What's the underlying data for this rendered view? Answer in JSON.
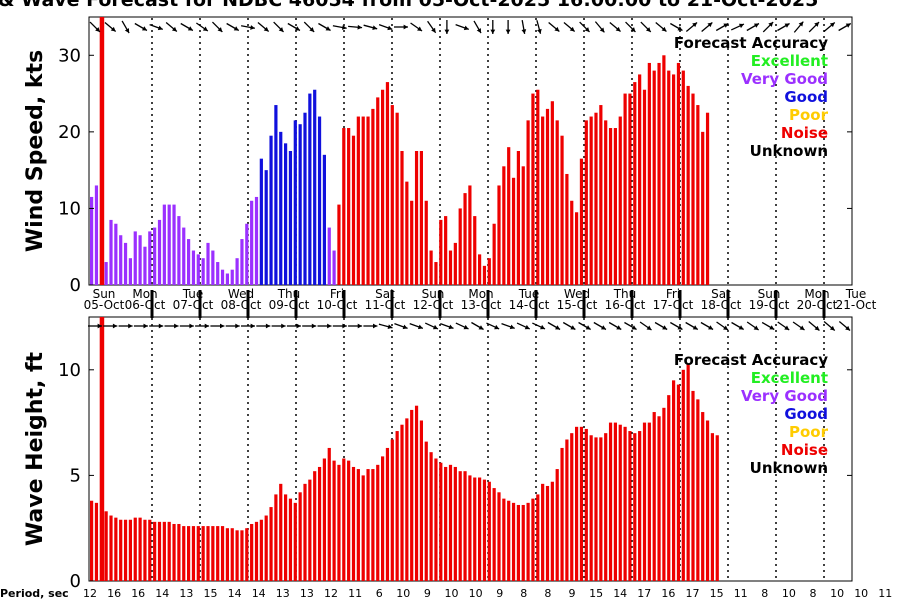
{
  "title": "& Wave Forecast for NDBC 46054 from 05-Oct-2025 16:00:00 to 21-Oct-2025",
  "legend": {
    "title": "Forecast Accuracy",
    "items": [
      {
        "label": "Excellent",
        "color": "#22ee22"
      },
      {
        "label": "Very Good",
        "color": "#9b30ff"
      },
      {
        "label": "Good",
        "color": "#1010dd"
      },
      {
        "label": "Poor",
        "color": "#ffcc00"
      },
      {
        "label": "Noise",
        "color": "#ee0000"
      },
      {
        "label": "Unknown",
        "color": "#000000"
      }
    ]
  },
  "days": [
    {
      "day": "Sun",
      "date": "05-Oct"
    },
    {
      "day": "Mon",
      "date": "06-Oct"
    },
    {
      "day": "Tue",
      "date": "07-Oct"
    },
    {
      "day": "Wed",
      "date": "08-Oct"
    },
    {
      "day": "Thu",
      "date": "09-Oct"
    },
    {
      "day": "Fri",
      "date": "10-Oct"
    },
    {
      "day": "Sat",
      "date": "11-Oct"
    },
    {
      "day": "Sun",
      "date": "12-Oct"
    },
    {
      "day": "Mon",
      "date": "13-Oct"
    },
    {
      "day": "Tue",
      "date": "14-Oct"
    },
    {
      "day": "Wed",
      "date": "15-Oct"
    },
    {
      "day": "Thu",
      "date": "16-Oct"
    },
    {
      "day": "Fri",
      "date": "17-Oct"
    },
    {
      "day": "Sat",
      "date": "18-Oct"
    },
    {
      "day": "Sun",
      "date": "19-Oct"
    },
    {
      "day": "Mon",
      "date": "20-Oct"
    },
    {
      "day": "Tue",
      "date": "21-Oct"
    }
  ],
  "period": {
    "label": "Period, sec",
    "values": [
      "12",
      "16",
      "16",
      "14",
      "13",
      "15",
      "14",
      "14",
      "13",
      "13",
      "12",
      "11",
      "6",
      "10",
      "9",
      "10",
      "10",
      "9",
      "8",
      "8",
      "9",
      "15",
      "14",
      "17",
      "16",
      "17",
      "15",
      "11",
      "8",
      "10",
      "8",
      "10",
      "10",
      "11"
    ]
  },
  "chart_data": [
    {
      "type": "bar",
      "title": "& Wave Forecast for NDBC 46054 from 05-Oct-2025 16:00:00 to 21-Oct-2025",
      "ylabel": "Wind Speed, kts",
      "ylim": [
        0,
        35
      ],
      "yticks": [
        0,
        10,
        20,
        30
      ],
      "grid": "vertical dotted lines at day boundaries",
      "legend_placement": "top-right",
      "time_axis": "3-hourly from 05-Oct-2025 16:00",
      "values": [
        11.5,
        13,
        35,
        3,
        8.5,
        8,
        6.5,
        5.5,
        3.5,
        7,
        6.5,
        5,
        7,
        7.5,
        8.5,
        10.5,
        10.5,
        10.5,
        9,
        7.5,
        6,
        4.5,
        4,
        3.5,
        5.5,
        4.5,
        3,
        2,
        1.5,
        2,
        3.5,
        6,
        8,
        11,
        11.5,
        16.5,
        15,
        19.5,
        23.5,
        20,
        18.5,
        17.5,
        21.5,
        21,
        22.5,
        25,
        25.5,
        22,
        17,
        7.5,
        4.5,
        10.5,
        20.5,
        20.5,
        19.5,
        22,
        22,
        22,
        23,
        24.5,
        25.5,
        26.5,
        23.5,
        22.5,
        17.5,
        13.5,
        11,
        17.5,
        17.5,
        11,
        4.5,
        3,
        8.5,
        9,
        4.5,
        5.5,
        10,
        12,
        13,
        9,
        4,
        2.5,
        3.5,
        8,
        13,
        15.5,
        18,
        14,
        17.5,
        15.5,
        21.5,
        25,
        25.5,
        22,
        23,
        24,
        21.5,
        19.5,
        14.5,
        11,
        9.5,
        16.5,
        21.5,
        22,
        22.5,
        23.5,
        21.5,
        20.5,
        20.5,
        22,
        25,
        25,
        26.5,
        27.5,
        25.5,
        29,
        28,
        29,
        30,
        28,
        27.5,
        29,
        28,
        26,
        25,
        23.5,
        20,
        22.5
      ],
      "accuracy": "3:violet,21:violet,29:violet,35:blue,49:violet,51:red"
    },
    {
      "type": "bar",
      "ylabel": "Wave Height, ft",
      "ylim": [
        0,
        12.5
      ],
      "yticks": [
        0,
        5,
        10
      ],
      "grid": "vertical dotted lines at day boundaries",
      "legend_placement": "top-right",
      "time_axis": "3-hourly from 05-Oct-2025 16:00",
      "values": [
        3.8,
        3.7,
        12.5,
        3.3,
        3.1,
        3.0,
        2.9,
        2.9,
        2.9,
        3.0,
        3.0,
        2.9,
        2.9,
        2.8,
        2.8,
        2.8,
        2.8,
        2.7,
        2.7,
        2.6,
        2.6,
        2.6,
        2.6,
        2.6,
        2.6,
        2.6,
        2.6,
        2.6,
        2.5,
        2.5,
        2.4,
        2.4,
        2.5,
        2.7,
        2.8,
        2.9,
        3.1,
        3.5,
        4.1,
        4.6,
        4.1,
        3.9,
        3.7,
        4.2,
        4.6,
        4.8,
        5.2,
        5.4,
        5.8,
        6.3,
        5.7,
        5.5,
        5.8,
        5.7,
        5.4,
        5.3,
        5.0,
        5.3,
        5.3,
        5.5,
        5.9,
        6.3,
        6.7,
        7.1,
        7.4,
        7.7,
        8.1,
        8.3,
        7.6,
        6.6,
        6.1,
        5.8,
        5.6,
        5.4,
        5.5,
        5.4,
        5.2,
        5.2,
        5.0,
        4.9,
        4.9,
        4.8,
        4.7,
        4.4,
        4.2,
        3.9,
        3.8,
        3.7,
        3.6,
        3.6,
        3.7,
        3.9,
        4.1,
        4.6,
        4.5,
        4.7,
        5.3,
        6.3,
        6.7,
        7.0,
        7.3,
        7.3,
        7.2,
        6.9,
        6.8,
        6.8,
        7.0,
        7.5,
        7.5,
        7.4,
        7.3,
        7.1,
        7.0,
        7.1,
        7.5,
        7.5,
        8.0,
        7.8,
        8.2,
        8.8,
        9.5,
        9.3,
        10.0,
        10.3,
        9.0,
        8.6,
        8.0,
        7.6,
        7.0,
        6.9
      ],
      "accuracy": "3:red"
    }
  ]
}
